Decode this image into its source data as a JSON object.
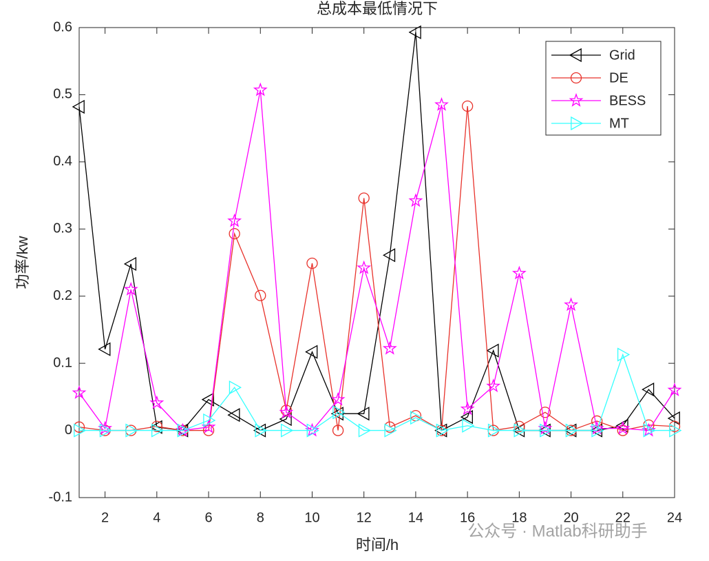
{
  "chart_data": {
    "type": "line",
    "title": "总成本最低情况下",
    "x_label": "时间/h",
    "y_label": "功率/kw",
    "watermark": "公众号 · Matlab科研助手",
    "x": [
      1,
      2,
      3,
      4,
      5,
      6,
      7,
      8,
      9,
      10,
      11,
      12,
      13,
      14,
      15,
      16,
      17,
      18,
      19,
      20,
      21,
      22,
      23,
      24
    ],
    "series": [
      {
        "name": "Grid",
        "color": "#000000",
        "marker": "triangle-left",
        "values": [
          0.482,
          0.121,
          0.248,
          0.005,
          0,
          0.046,
          0.023,
          0,
          0.017,
          0.117,
          0.025,
          0.025,
          0.261,
          0.593,
          0,
          0.02,
          0.119,
          0,
          0,
          0,
          0,
          0.007,
          0.061,
          0.018
        ]
      },
      {
        "name": "DE",
        "color": "#e8312a",
        "marker": "circle",
        "values": [
          0.005,
          0,
          0,
          0.006,
          0,
          0,
          0.293,
          0.201,
          0.03,
          0.249,
          0,
          0.346,
          0.005,
          0.022,
          0,
          0.483,
          0,
          0.006,
          0.027,
          0,
          0.014,
          0,
          0.008,
          0.006
        ]
      },
      {
        "name": "BESS",
        "color": "#ff00ff",
        "marker": "star",
        "values": [
          0.056,
          0.003,
          0.21,
          0.041,
          0,
          0.005,
          0.312,
          0.507,
          0.027,
          0,
          0.046,
          0.242,
          0.122,
          0.342,
          0.485,
          0.032,
          0.066,
          0.234,
          0.003,
          0.187,
          0.003,
          0.003,
          0,
          0.06
        ]
      },
      {
        "name": "MT",
        "color": "#33ffff",
        "marker": "triangle-right",
        "values": [
          0,
          0,
          0,
          0,
          0,
          0.015,
          0.064,
          0,
          0,
          0,
          0.027,
          0,
          0,
          0.019,
          0,
          0.007,
          0,
          0,
          0,
          0,
          0,
          0.113,
          0,
          0
        ]
      }
    ],
    "xlim": [
      1,
      24
    ],
    "xticks": [
      2,
      4,
      6,
      8,
      10,
      12,
      14,
      16,
      18,
      20,
      22,
      24
    ],
    "ylim": [
      -0.1,
      0.6
    ],
    "yticks": [
      -0.1,
      0,
      0.1,
      0.2,
      0.3,
      0.4,
      0.5,
      0.6
    ],
    "legend": "upper right",
    "grid": false
  }
}
